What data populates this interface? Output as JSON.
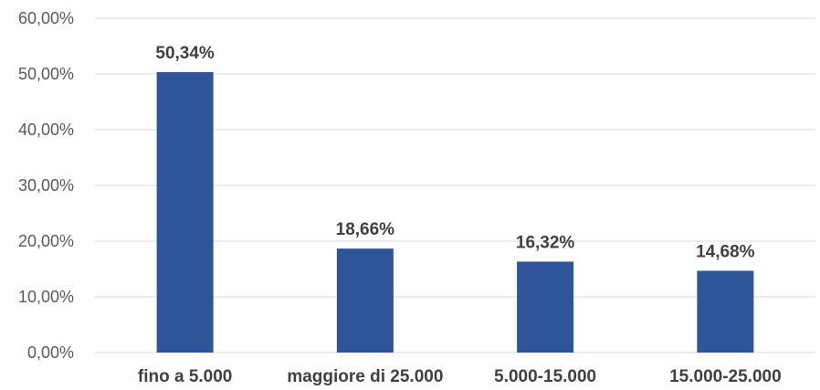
{
  "chart_data": {
    "type": "bar",
    "categories": [
      "fino a 5.000",
      "maggiore di 25.000",
      "5.000-15.000",
      "15.000-25.000"
    ],
    "values": [
      50.34,
      18.66,
      16.32,
      14.68
    ],
    "data_labels": [
      "50,34%",
      "18,66%",
      "16,32%",
      "14,68%"
    ],
    "title": "",
    "xlabel": "",
    "ylabel": "",
    "ylim": [
      0,
      60
    ],
    "y_ticks": [
      0,
      10,
      20,
      30,
      40,
      50,
      60
    ],
    "y_tick_labels": [
      "0,00%",
      "10,00%",
      "20,00%",
      "30,00%",
      "40,00%",
      "50,00%",
      "60,00%"
    ],
    "grid": true,
    "legend": "none",
    "bar_color": "#2e5597",
    "grid_color": "#d9d9d9"
  }
}
